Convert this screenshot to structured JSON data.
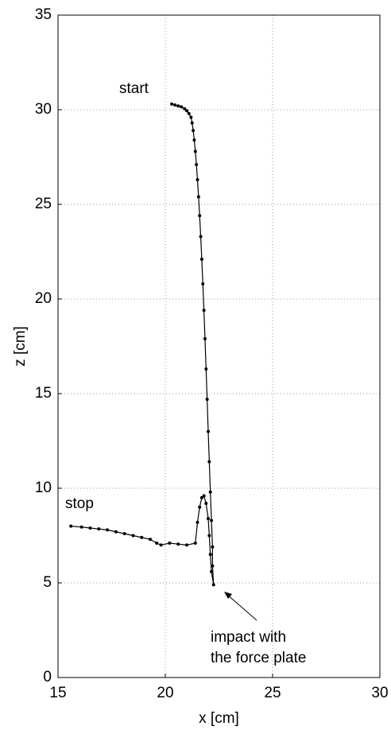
{
  "chart_data": {
    "type": "line",
    "xlabel": "x [cm]",
    "ylabel": "z [cm]",
    "xlim": [
      15,
      30
    ],
    "xticks": [
      15,
      20,
      25,
      30
    ],
    "ylim": [
      0,
      35
    ],
    "yticks": [
      0,
      5,
      10,
      15,
      20,
      25,
      30,
      35
    ],
    "grid": true,
    "series": [
      {
        "color": "#000000",
        "x": [
          20.3,
          20.45,
          20.6,
          20.75,
          20.9,
          21.0,
          21.1,
          21.2,
          21.25,
          21.3,
          21.35,
          21.4,
          21.45,
          21.5,
          21.55,
          21.6,
          21.65,
          21.7,
          21.75,
          21.8,
          21.85,
          21.9,
          21.95,
          22.0,
          22.05,
          22.1,
          22.15,
          22.2,
          22.2,
          22.25,
          22.15,
          22.1,
          22.05,
          22.0,
          21.9,
          21.8,
          21.7,
          21.6,
          21.5,
          21.4,
          21.0,
          20.6,
          20.2,
          19.8,
          19.6,
          19.3,
          18.9,
          18.5,
          18.1,
          17.7,
          17.3,
          16.9,
          16.5,
          16.1,
          15.6
        ],
        "values": [
          30.3,
          30.25,
          30.2,
          30.15,
          30.05,
          29.95,
          29.8,
          29.6,
          29.3,
          28.9,
          28.4,
          27.8,
          27.1,
          26.3,
          25.4,
          24.4,
          23.3,
          22.1,
          20.8,
          19.4,
          17.9,
          16.3,
          14.7,
          13.0,
          11.4,
          9.8,
          8.3,
          6.9,
          5.9,
          4.9,
          5.6,
          6.5,
          7.5,
          8.4,
          9.2,
          9.6,
          9.5,
          9.0,
          8.2,
          7.1,
          7.0,
          7.05,
          7.1,
          7.0,
          7.1,
          7.3,
          7.4,
          7.5,
          7.6,
          7.7,
          7.8,
          7.85,
          7.9,
          7.95,
          8.0
        ]
      }
    ],
    "annotations": [
      "start",
      "stop",
      "impact with",
      "the force plate"
    ]
  }
}
